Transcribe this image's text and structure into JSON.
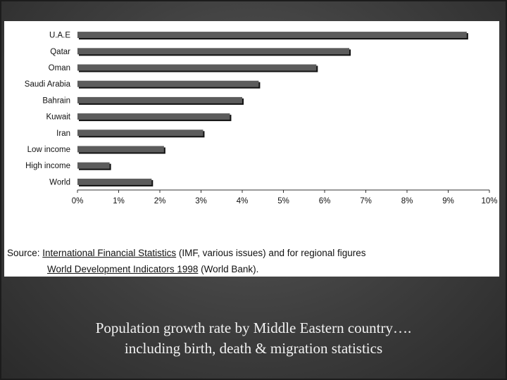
{
  "chart_data": {
    "type": "bar",
    "orientation": "horizontal",
    "categories": [
      "U.A.E",
      "Qatar",
      "Oman",
      "Saudi Arabia",
      "Bahrain",
      "Kuwait",
      "Iran",
      "Low income",
      "High income",
      "World"
    ],
    "values": [
      9.45,
      6.6,
      5.8,
      4.4,
      4.0,
      3.7,
      3.05,
      2.1,
      0.78,
      1.8
    ],
    "x_ticks": [
      "0%",
      "1%",
      "2%",
      "3%",
      "4%",
      "5%",
      "6%",
      "7%",
      "8%",
      "9%",
      "10%"
    ],
    "xlim": [
      0,
      10
    ],
    "bar_color": "#5c5c5c",
    "shadow_color": "#111111"
  },
  "source": {
    "label": "Source:",
    "ref1": "International Financial Statistics",
    "text1": "(IMF, various issues) and for regional figures",
    "ref2": "World Development Indicators 1998",
    "text2": "(World Bank)."
  },
  "caption": {
    "line1": "Population growth rate by Middle Eastern country….",
    "line2": "including birth, death & migration statistics"
  }
}
